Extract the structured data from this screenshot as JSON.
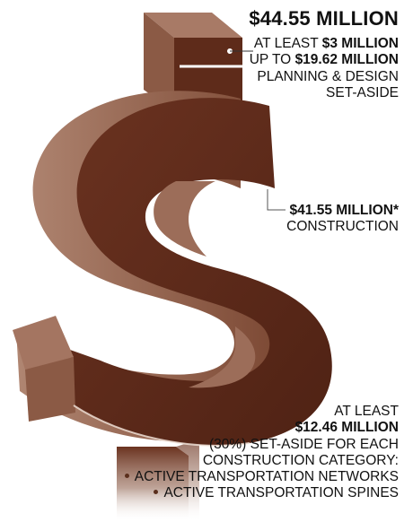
{
  "total": "$44.55 MILLION",
  "planning_design": {
    "line1_prefix": "AT LEAST ",
    "line1_amount": "$3 MILLION",
    "line2_prefix": "UP TO ",
    "line2_amount": "$19.62 MILLION",
    "line3": "PLANNING & DESIGN",
    "line4": "SET-ASIDE"
  },
  "construction": {
    "amount": "$41.55 MILLION*",
    "label": "CONSTRUCTION"
  },
  "set_aside": {
    "line1": "AT LEAST",
    "amount": "$12.46 MILLION",
    "line3": "(30%) SET-ASIDE FOR EACH",
    "line4": "CONSTRUCTION CATEGORY:",
    "categories": [
      "ACTIVE TRANSPORTATION NETWORKS",
      "ACTIVE TRANSPORTATION SPINES"
    ]
  },
  "colors": {
    "front_face": "#6b3320",
    "side_face": "#8a5a45",
    "top_face": "#a47561",
    "dark": "#4a2114"
  }
}
